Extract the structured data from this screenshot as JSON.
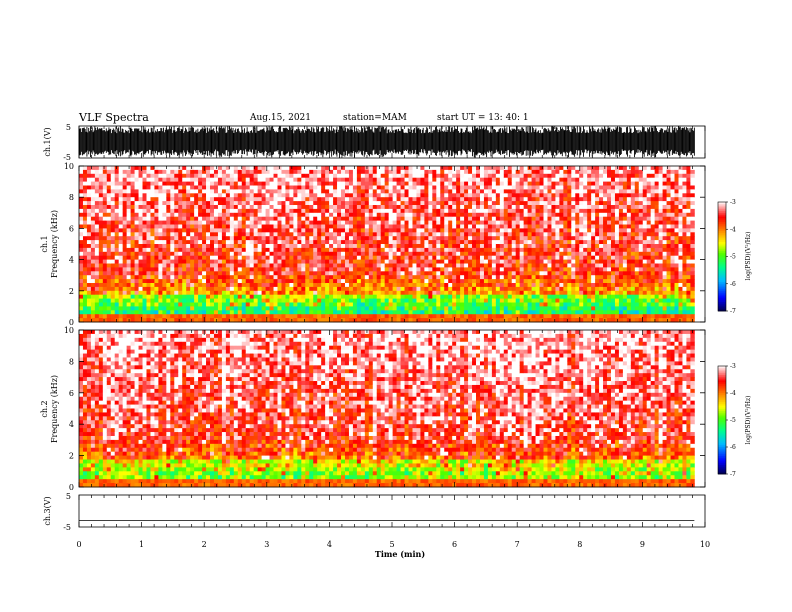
{
  "header": {
    "title": "VLF Spectra",
    "date": "Aug.15, 2021",
    "station": "station=MAM",
    "start_ut": "start  UT  =   13: 40: 1"
  },
  "chart_data": [
    {
      "type": "line",
      "panel": "ch1-waveform",
      "ylabel": "ch.1(V)",
      "yticks": [
        "5",
        "-5"
      ],
      "ylim": [
        -5,
        5
      ],
      "x_range": [
        0,
        9.83
      ],
      "description_color": "#000000",
      "note": "dense broadband waveform filling nearly full +/-5 V range"
    },
    {
      "type": "heatmap",
      "panel": "ch1-spectrogram",
      "ylabel_line1": "ch.1",
      "ylabel_line2": "Frequency  (kHz)",
      "yticks": [
        "0",
        "2",
        "4",
        "6",
        "8",
        "10"
      ],
      "ylim": [
        0,
        10
      ],
      "xlim": [
        0,
        10
      ],
      "data_extent_min": 9.83,
      "colorbar": {
        "label": "log(PSD)(V²/Hz)",
        "ticks": [
          "-3",
          "-4",
          "-5",
          "-6",
          "-7"
        ],
        "range": [
          -7,
          -3
        ],
        "colors": [
          "#000080",
          "#0000ff",
          "#00c0ff",
          "#00ff80",
          "#40ff00",
          "#ffff00",
          "#ff8000",
          "#ff0000",
          "#ffffff"
        ]
      }
    },
    {
      "type": "heatmap",
      "panel": "ch2-spectrogram",
      "ylabel_line1": "ch.2",
      "ylabel_line2": "Frequency  (kHz)",
      "yticks": [
        "0",
        "2",
        "4",
        "6",
        "8",
        "10"
      ],
      "ylim": [
        0,
        10
      ],
      "xlim": [
        0,
        10
      ],
      "data_extent_min": 9.83,
      "colorbar": {
        "label": "log(PSD)(V²/Hz)",
        "ticks": [
          "-3",
          "-4",
          "-5",
          "-6",
          "-7"
        ],
        "range": [
          -7,
          -3
        ]
      }
    },
    {
      "type": "line",
      "panel": "ch3-waveform",
      "ylabel": "ch.3(V)",
      "yticks": [
        "5",
        "-5"
      ],
      "ylim": [
        -5,
        5
      ],
      "x": [
        0,
        9.83
      ],
      "y": [
        -3,
        -3
      ]
    }
  ],
  "xaxis": {
    "label": "Time  (min)",
    "ticks": [
      "0",
      "1",
      "2",
      "3",
      "4",
      "5",
      "6",
      "7",
      "8",
      "9",
      "10"
    ],
    "range": [
      0,
      10
    ]
  }
}
